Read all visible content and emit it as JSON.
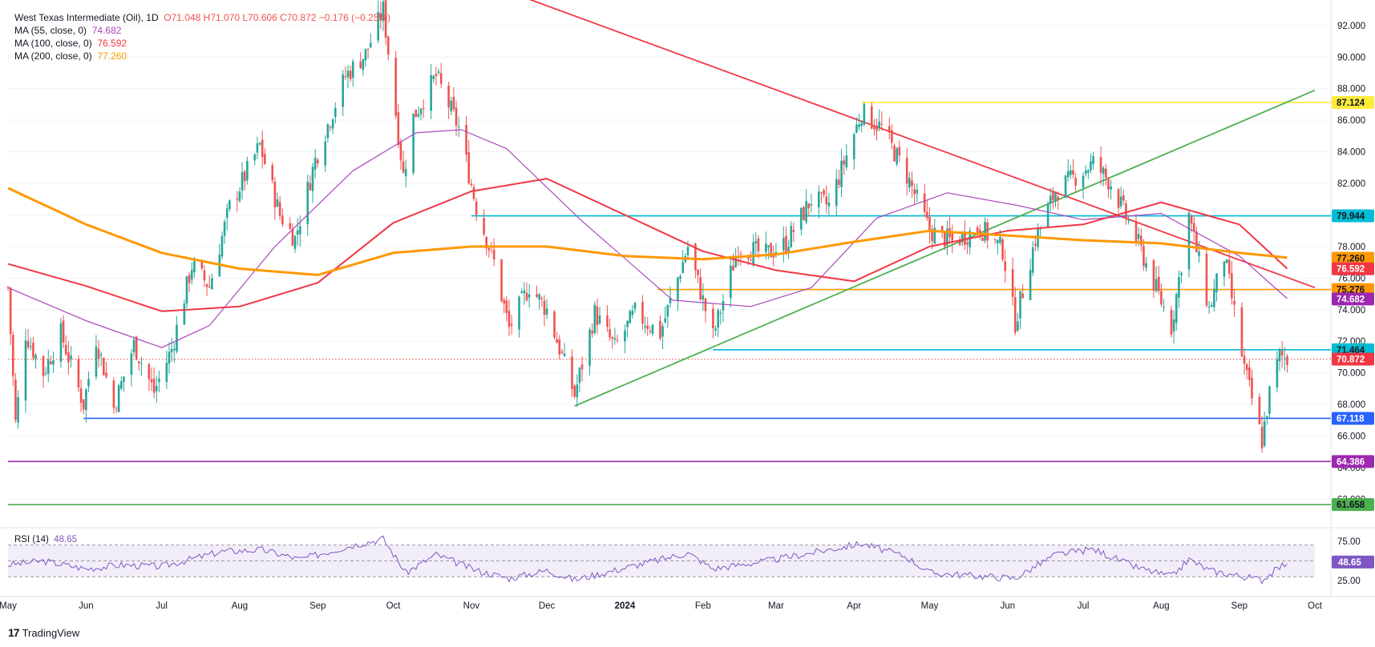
{
  "legend": {
    "symbol": "West Texas Intermediate (Oil), 1D",
    "ohlc": "O71.048  H71.070  L70.606  C70.872  −0.176 (−0.25%)",
    "ma55_label": "MA (55, close, 0)",
    "ma55_value": "74.682",
    "ma100_label": "MA (100, close, 0)",
    "ma100_value": "76.592",
    "ma200_label": "MA (200, close, 0)",
    "ma200_value": "77.260"
  },
  "rsi": {
    "label": "RSI (14)",
    "value": "48.65"
  },
  "brand": {
    "logo": "17",
    "name": "TradingView"
  },
  "colors": {
    "up": "#26a69a",
    "down": "#ef5350",
    "ma55": "#ab47bc",
    "ma100": "#f23645",
    "ma200": "#ff9800",
    "cyan": "#00bcd4",
    "blue": "#2962ff",
    "purple": "#9c27b0",
    "green": "#4caf50",
    "yellow": "#ffeb3b",
    "rsi": "#7e57c2"
  },
  "chart_data": {
    "type": "candlestick",
    "y_axis": {
      "min": 60.6,
      "max": 92.6,
      "ticks": [
        "62.000",
        "64.000",
        "66.000",
        "68.000",
        "70.000",
        "72.000",
        "74.000",
        "76.000",
        "78.000",
        "80.000",
        "82.000",
        "84.000",
        "86.000",
        "88.000",
        "90.000",
        "92.000"
      ]
    },
    "x_axis": {
      "start": "2023-05-01",
      "end": "2024-10-01",
      "labels": [
        {
          "date": "2023-05-01",
          "text": "May"
        },
        {
          "date": "2023-06-01",
          "text": "Jun"
        },
        {
          "date": "2023-07-01",
          "text": "Jul"
        },
        {
          "date": "2023-08-01",
          "text": "Aug"
        },
        {
          "date": "2023-09-01",
          "text": "Sep"
        },
        {
          "date": "2023-10-01",
          "text": "Oct"
        },
        {
          "date": "2023-11-01",
          "text": "Nov"
        },
        {
          "date": "2023-12-01",
          "text": "Dec"
        },
        {
          "date": "2024-01-01",
          "text": "2024"
        },
        {
          "date": "2024-02-01",
          "text": "Feb"
        },
        {
          "date": "2024-03-01",
          "text": "Mar"
        },
        {
          "date": "2024-04-01",
          "text": "Apr"
        },
        {
          "date": "2024-05-01",
          "text": "May"
        },
        {
          "date": "2024-06-01",
          "text": "Jun"
        },
        {
          "date": "2024-07-01",
          "text": "Jul"
        },
        {
          "date": "2024-08-01",
          "text": "Aug"
        },
        {
          "date": "2024-09-01",
          "text": "Sep"
        },
        {
          "date": "2024-10-01",
          "text": "Oct"
        }
      ]
    },
    "price_path": [
      [
        "2023-05-01",
        75.4
      ],
      [
        "2023-05-04",
        66.8
      ],
      [
        "2023-05-08",
        72.5
      ],
      [
        "2023-05-15",
        70.0
      ],
      [
        "2023-05-22",
        72.5
      ],
      [
        "2023-05-31",
        68.0
      ],
      [
        "2023-06-05",
        72.2
      ],
      [
        "2023-06-12",
        67.8
      ],
      [
        "2023-06-20",
        71.8
      ],
      [
        "2023-06-28",
        68.8
      ],
      [
        "2023-07-05",
        71.5
      ],
      [
        "2023-07-13",
        76.8
      ],
      [
        "2023-07-20",
        75.5
      ],
      [
        "2023-07-28",
        80.5
      ],
      [
        "2023-08-09",
        84.4
      ],
      [
        "2023-08-17",
        80.0
      ],
      [
        "2023-08-23",
        78.5
      ],
      [
        "2023-08-31",
        83.5
      ],
      [
        "2023-09-12",
        88.8
      ],
      [
        "2023-09-20",
        90.2
      ],
      [
        "2023-09-27",
        93.0
      ],
      [
        "2023-10-05",
        82.5
      ],
      [
        "2023-10-09",
        86.2
      ],
      [
        "2023-10-18",
        88.8
      ],
      [
        "2023-10-27",
        85.5
      ],
      [
        "2023-11-03",
        80.5
      ],
      [
        "2023-11-10",
        77.0
      ],
      [
        "2023-11-16",
        72.8
      ],
      [
        "2023-11-24",
        75.5
      ],
      [
        "2023-12-01",
        74.0
      ],
      [
        "2023-12-12",
        68.6
      ],
      [
        "2023-12-20",
        73.8
      ],
      [
        "2023-12-28",
        71.6
      ],
      [
        "2024-01-05",
        73.8
      ],
      [
        "2024-01-15",
        72.5
      ],
      [
        "2024-01-26",
        78.0
      ],
      [
        "2024-02-05",
        72.3
      ],
      [
        "2024-02-15",
        78.0
      ],
      [
        "2024-02-26",
        77.5
      ],
      [
        "2024-03-05",
        78.2
      ],
      [
        "2024-03-15",
        81.0
      ],
      [
        "2024-03-22",
        80.6
      ],
      [
        "2024-04-04",
        86.5
      ],
      [
        "2024-04-12",
        85.5
      ],
      [
        "2024-04-22",
        82.5
      ],
      [
        "2024-05-01",
        79.0
      ],
      [
        "2024-05-10",
        78.3
      ],
      [
        "2024-05-21",
        79.2
      ],
      [
        "2024-05-30",
        77.8
      ],
      [
        "2024-06-04",
        73.2
      ],
      [
        "2024-06-12",
        78.5
      ],
      [
        "2024-06-20",
        81.5
      ],
      [
        "2024-07-05",
        83.3
      ],
      [
        "2024-07-12",
        82.0
      ],
      [
        "2024-07-22",
        78.5
      ],
      [
        "2024-08-05",
        72.9
      ],
      [
        "2024-08-12",
        80.0
      ],
      [
        "2024-08-20",
        74.0
      ],
      [
        "2024-08-26",
        77.4
      ],
      [
        "2024-09-03",
        70.3
      ],
      [
        "2024-09-10",
        65.7
      ],
      [
        "2024-09-13",
        68.7
      ],
      [
        "2024-09-17",
        71.1
      ],
      [
        "2024-09-20",
        70.87
      ]
    ],
    "moving_averages": [
      {
        "name": "MA (55, close, 0)",
        "value": 74.682,
        "color": "#ab47bc",
        "points": [
          [
            "2023-05-01",
            75.4
          ],
          [
            "2023-06-01",
            73.3
          ],
          [
            "2023-07-01",
            71.6
          ],
          [
            "2023-07-20",
            73.0
          ],
          [
            "2023-08-15",
            78.0
          ],
          [
            "2023-09-15",
            82.8
          ],
          [
            "2023-10-10",
            85.2
          ],
          [
            "2023-10-28",
            85.4
          ],
          [
            "2023-11-15",
            84.2
          ],
          [
            "2023-12-15",
            79.6
          ],
          [
            "2024-01-20",
            74.6
          ],
          [
            "2024-02-20",
            74.2
          ],
          [
            "2024-03-15",
            75.4
          ],
          [
            "2024-04-10",
            79.8
          ],
          [
            "2024-05-08",
            81.4
          ],
          [
            "2024-06-05",
            80.6
          ],
          [
            "2024-07-01",
            79.7
          ],
          [
            "2024-08-01",
            80.1
          ],
          [
            "2024-09-01",
            77.4
          ],
          [
            "2024-09-20",
            74.7
          ]
        ]
      },
      {
        "name": "MA (100, close, 0)",
        "value": 76.592,
        "color": "#f23645",
        "points": [
          [
            "2023-05-01",
            76.9
          ],
          [
            "2023-06-01",
            75.5
          ],
          [
            "2023-07-01",
            73.9
          ],
          [
            "2023-08-01",
            74.2
          ],
          [
            "2023-09-01",
            75.7
          ],
          [
            "2023-10-01",
            79.5
          ],
          [
            "2023-11-01",
            81.5
          ],
          [
            "2023-12-01",
            82.3
          ],
          [
            "2024-01-01",
            80.0
          ],
          [
            "2024-02-01",
            77.7
          ],
          [
            "2024-03-01",
            76.5
          ],
          [
            "2024-04-01",
            75.8
          ],
          [
            "2024-05-01",
            78.0
          ],
          [
            "2024-06-01",
            79.0
          ],
          [
            "2024-07-01",
            79.4
          ],
          [
            "2024-08-01",
            80.8
          ],
          [
            "2024-09-01",
            79.4
          ],
          [
            "2024-09-20",
            76.6
          ]
        ]
      },
      {
        "name": "MA (200, close, 0)",
        "value": 77.26,
        "color": "#ff9800",
        "points": [
          [
            "2023-05-01",
            81.7
          ],
          [
            "2023-06-01",
            79.4
          ],
          [
            "2023-07-01",
            77.6
          ],
          [
            "2023-08-01",
            76.6
          ],
          [
            "2023-09-01",
            76.2
          ],
          [
            "2023-10-01",
            77.6
          ],
          [
            "2023-11-01",
            78.0
          ],
          [
            "2023-12-01",
            78.0
          ],
          [
            "2024-01-01",
            77.4
          ],
          [
            "2024-02-01",
            77.2
          ],
          [
            "2024-03-01",
            77.5
          ],
          [
            "2024-04-01",
            78.3
          ],
          [
            "2024-05-01",
            79.0
          ],
          [
            "2024-06-01",
            78.7
          ],
          [
            "2024-07-01",
            78.4
          ],
          [
            "2024-08-01",
            78.2
          ],
          [
            "2024-09-01",
            77.6
          ],
          [
            "2024-09-20",
            77.3
          ]
        ]
      }
    ],
    "horizontal_levels": [
      {
        "value": 87.124,
        "from": "2024-04-04",
        "color": "#ffeb3b",
        "label": "87.124",
        "label_bg": "#ffeb3b",
        "label_fg": "#131722"
      },
      {
        "value": 79.944,
        "from": "2023-11-01",
        "color": "#00bcd4",
        "label": "79.944",
        "label_bg": "#00bcd4",
        "label_fg": "#131722"
      },
      {
        "value": 77.26,
        "from": "",
        "color": "",
        "label": "77.260",
        "label_bg": "#ff9800",
        "label_fg": "#131722"
      },
      {
        "value": 76.592,
        "from": "",
        "color": "",
        "label": "76.592",
        "label_bg": "#f23645",
        "label_fg": "#ffffff"
      },
      {
        "value": 75.276,
        "from": "2024-01-14",
        "color": "#ff9800",
        "label": "75.276",
        "label_bg": "#ff9800",
        "label_fg": "#131722"
      },
      {
        "value": 74.682,
        "from": "",
        "color": "",
        "label": "74.682",
        "label_bg": "#9c27b0",
        "label_fg": "#ffffff"
      },
      {
        "value": 71.464,
        "from": "2024-02-05",
        "color": "#00bcd4",
        "label": "71.464",
        "label_bg": "#00bcd4",
        "label_fg": "#131722"
      },
      {
        "value": 70.872,
        "from": "2023-05-01",
        "color": "#ef5350",
        "dotted": true,
        "label": "70.872",
        "label_bg": "#f23645",
        "label_fg": "#ffffff"
      },
      {
        "value": 67.118,
        "from": "2023-05-31",
        "color": "#2962ff",
        "label": "67.118",
        "label_bg": "#2962ff",
        "label_fg": "#ffffff"
      },
      {
        "value": 64.386,
        "from": "2023-05-01",
        "color": "#9c27b0",
        "label": "64.386",
        "label_bg": "#9c27b0",
        "label_fg": "#ffffff"
      },
      {
        "value": 61.658,
        "from": "2023-05-01",
        "color": "#4caf50",
        "label": "61.658",
        "label_bg": "#4caf50",
        "label_fg": "#131722"
      }
    ],
    "trend_lines": [
      {
        "color": "#f23645",
        "from": [
          "2023-10-15",
          96.0
        ],
        "to": [
          "2024-10-01",
          75.4
        ]
      },
      {
        "color": "#4caf50",
        "from": [
          "2023-12-12",
          67.9
        ],
        "to": [
          "2024-10-01",
          87.9
        ]
      }
    ],
    "rsi": {
      "y_axis": {
        "min": 12,
        "max": 88,
        "ticks": [
          "25.00",
          "48.65",
          "75.00"
        ]
      },
      "overbought": 70,
      "middle": 50,
      "oversold": 30,
      "path": [
        [
          "2023-05-01",
          45
        ],
        [
          "2023-05-15",
          50
        ],
        [
          "2023-06-01",
          40
        ],
        [
          "2023-06-15",
          45
        ],
        [
          "2023-07-01",
          43
        ],
        [
          "2023-07-25",
          62
        ],
        [
          "2023-08-10",
          64
        ],
        [
          "2023-08-25",
          52
        ],
        [
          "2023-09-15",
          70
        ],
        [
          "2023-09-27",
          78
        ],
        [
          "2023-10-06",
          35
        ],
        [
          "2023-10-18",
          58
        ],
        [
          "2023-11-03",
          38
        ],
        [
          "2023-11-16",
          28
        ],
        [
          "2023-12-01",
          38
        ],
        [
          "2023-12-12",
          26
        ],
        [
          "2024-01-10",
          48
        ],
        [
          "2024-01-26",
          60
        ],
        [
          "2024-02-05",
          40
        ],
        [
          "2024-03-01",
          52
        ],
        [
          "2024-04-04",
          72
        ],
        [
          "2024-04-22",
          55
        ],
        [
          "2024-05-01",
          35
        ],
        [
          "2024-06-04",
          28
        ],
        [
          "2024-06-20",
          58
        ],
        [
          "2024-07-05",
          65
        ],
        [
          "2024-07-22",
          42
        ],
        [
          "2024-08-05",
          30
        ],
        [
          "2024-08-12",
          52
        ],
        [
          "2024-08-20",
          38
        ],
        [
          "2024-09-10",
          26
        ],
        [
          "2024-09-20",
          48.65
        ]
      ]
    }
  }
}
